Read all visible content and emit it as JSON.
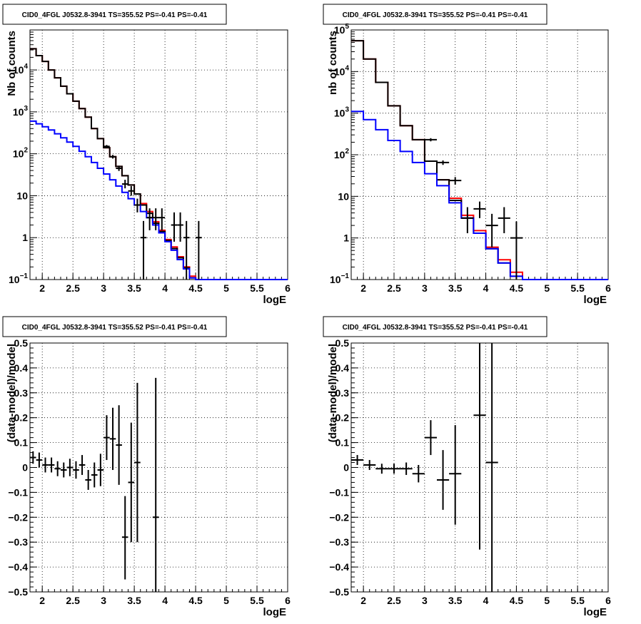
{
  "chart_data": [
    {
      "type": "histogram",
      "title": "CID0_4FGL J0532.8-3941 TS=355.52 PS=-0.41 PS=-0.41",
      "xlabel": "logE",
      "ylabel": "Nb of counts",
      "xlim": [
        1.8,
        6.0
      ],
      "ylim": [
        0.1,
        90000
      ],
      "ylog": true,
      "grid": true,
      "x_ticks": [
        "2",
        "2.5",
        "3",
        "3.5",
        "4",
        "4.5",
        "5",
        "5.5",
        "6"
      ],
      "y_ticks": [
        {
          "v": 0.1,
          "label": "10",
          "exp": "−1"
        },
        {
          "v": 1,
          "label": "1"
        },
        {
          "v": 10,
          "label": "10"
        },
        {
          "v": 100,
          "label": "10",
          "exp": "2"
        },
        {
          "v": 1000,
          "label": "10",
          "exp": "3"
        },
        {
          "v": 10000,
          "label": "10",
          "exp": "4"
        }
      ],
      "bin_edges": [
        1.8,
        1.9,
        2.0,
        2.1,
        2.2,
        2.3,
        2.4,
        2.5,
        2.6,
        2.7,
        2.8,
        2.9,
        3.0,
        3.1,
        3.2,
        3.3,
        3.4,
        3.5,
        3.6,
        3.7,
        3.8,
        3.9,
        4.0,
        4.1,
        4.2,
        4.3,
        4.4,
        4.5,
        4.6,
        4.7,
        4.8,
        4.9,
        5.0,
        5.1,
        5.2,
        5.3,
        5.4,
        5.5,
        5.6,
        5.7,
        5.8,
        5.9,
        6.0
      ],
      "series": [
        {
          "color": "#ff0000",
          "style": "step",
          "values": [
            32000,
            22000,
            16000,
            10000,
            6500,
            4100,
            2700,
            1800,
            1200,
            750,
            400,
            230,
            140,
            85,
            50,
            30,
            18,
            11,
            6.5,
            4.2,
            2.4,
            1.5,
            0.9,
            0.6,
            0.35,
            0.2,
            0.12,
            0.1,
            0.1,
            0.1,
            0.1,
            0.1,
            0.1,
            0.1,
            0.1,
            0.1,
            0.1,
            0.1,
            0.1,
            0.1,
            0.1,
            0.1
          ]
        },
        {
          "color": "#000000",
          "style": "step",
          "values": [
            32000,
            22000,
            16000,
            10000,
            6500,
            4100,
            2700,
            1800,
            1200,
            750,
            400,
            230,
            140,
            85,
            50,
            30,
            18,
            11,
            6.0,
            3.8,
            2.2,
            1.4,
            0.85,
            0.55,
            0.33,
            0.19,
            0.11,
            0.1,
            0.1,
            0.1,
            0.1,
            0.1,
            0.1,
            0.1,
            0.1,
            0.1,
            0.1,
            0.1,
            0.1,
            0.1,
            0.1,
            0.1
          ]
        },
        {
          "color": "#0000ff",
          "style": "step",
          "values": [
            600,
            520,
            440,
            370,
            300,
            240,
            190,
            150,
            115,
            85,
            62,
            45,
            33,
            24,
            17,
            12,
            8.5,
            6.0,
            4.2,
            3.0,
            2.0,
            1.3,
            0.8,
            0.5,
            0.3,
            0.18,
            0.11,
            0.1,
            0.1,
            0.1,
            0.1,
            0.1,
            0.1,
            0.1,
            0.1,
            0.1,
            0.1,
            0.1,
            0.1,
            0.1,
            0.1,
            0.1
          ]
        }
      ],
      "points": {
        "color": "#000000",
        "xerr": 0.05,
        "data": [
          {
            "x": 3.05,
            "y": 150,
            "lo": 140,
            "hi": 162
          },
          {
            "x": 3.15,
            "y": 85,
            "lo": 77,
            "hi": 94
          },
          {
            "x": 3.25,
            "y": 45,
            "lo": 39,
            "hi": 52
          },
          {
            "x": 3.35,
            "y": 19,
            "lo": 15,
            "hi": 24
          },
          {
            "x": 3.45,
            "y": 13,
            "lo": 10,
            "hi": 17
          },
          {
            "x": 3.55,
            "y": 6,
            "lo": 4,
            "hi": 8.5
          },
          {
            "x": 3.65,
            "y": 1,
            "lo": 0.1,
            "hi": 2.5
          },
          {
            "x": 3.75,
            "y": 3,
            "lo": 1.5,
            "hi": 5
          },
          {
            "x": 3.85,
            "y": 3,
            "lo": 1.5,
            "hi": 5
          },
          {
            "x": 3.95,
            "y": 3,
            "lo": 1.5,
            "hi": 5
          },
          {
            "x": 4.15,
            "y": 2,
            "lo": 0.8,
            "hi": 4
          },
          {
            "x": 4.25,
            "y": 2,
            "lo": 0.8,
            "hi": 4
          },
          {
            "x": 4.35,
            "y": 1,
            "lo": 0.1,
            "hi": 2.5
          },
          {
            "x": 4.55,
            "y": 1,
            "lo": 0.1,
            "hi": 2.5
          }
        ]
      }
    },
    {
      "type": "histogram",
      "title": "CID0_4FGL J0532.8-3941 TS=355.52 PS=-0.41 PS=-0.41",
      "xlabel": "logE",
      "ylabel": "nb of counts",
      "xlim": [
        1.8,
        6.0
      ],
      "ylim": [
        0.1,
        100000
      ],
      "ylog": true,
      "grid": true,
      "x_ticks": [
        "2",
        "2.5",
        "3",
        "3.5",
        "4",
        "4.5",
        "5",
        "5.5",
        "6"
      ],
      "y_ticks": [
        {
          "v": 0.1,
          "label": "10",
          "exp": "−1"
        },
        {
          "v": 1,
          "label": "1"
        },
        {
          "v": 10,
          "label": "10"
        },
        {
          "v": 100,
          "label": "10",
          "exp": "2"
        },
        {
          "v": 1000,
          "label": "10",
          "exp": "3"
        },
        {
          "v": 10000,
          "label": "10",
          "exp": "4"
        },
        {
          "v": 100000,
          "label": "10",
          "exp": "5"
        }
      ],
      "bin_edges": [
        1.8,
        2.0,
        2.2,
        2.4,
        2.6,
        2.8,
        3.0,
        3.2,
        3.4,
        3.6,
        3.8,
        4.0,
        4.2,
        4.4,
        4.6,
        4.8,
        5.0,
        5.2,
        5.4,
        5.6,
        5.8,
        6.0
      ],
      "series": [
        {
          "color": "#ff0000",
          "style": "step",
          "values": [
            55000,
            20000,
            5500,
            1500,
            500,
            230,
            70,
            25,
            9,
            3.5,
            1.5,
            0.6,
            0.3,
            0.15,
            0.1,
            0.1,
            0.1,
            0.1,
            0.1,
            0.1,
            0.1
          ]
        },
        {
          "color": "#000000",
          "style": "step",
          "values": [
            55000,
            20000,
            5500,
            1500,
            500,
            230,
            70,
            25,
            8,
            3,
            1.3,
            0.55,
            0.25,
            0.12,
            0.1,
            0.1,
            0.1,
            0.1,
            0.1,
            0.1,
            0.1
          ]
        },
        {
          "color": "#0000ff",
          "style": "step",
          "values": [
            1100,
            700,
            400,
            220,
            120,
            65,
            35,
            18,
            7,
            3,
            1.3,
            0.55,
            0.25,
            0.12,
            0.1,
            0.1,
            0.1,
            0.1,
            0.1,
            0.1,
            0.1
          ]
        }
      ],
      "points": {
        "color": "#000000",
        "xerr": 0.1,
        "data": [
          {
            "x": 3.1,
            "y": 230,
            "lo": 210,
            "hi": 250
          },
          {
            "x": 3.3,
            "y": 65,
            "lo": 57,
            "hi": 73
          },
          {
            "x": 3.5,
            "y": 24,
            "lo": 19,
            "hi": 29
          },
          {
            "x": 3.7,
            "y": 3,
            "lo": 1.3,
            "hi": 5.5
          },
          {
            "x": 3.9,
            "y": 5,
            "lo": 3,
            "hi": 7.5
          },
          {
            "x": 4.1,
            "y": 2,
            "lo": 0.6,
            "hi": 3.8
          },
          {
            "x": 4.3,
            "y": 3,
            "lo": 1.3,
            "hi": 5.5
          },
          {
            "x": 4.5,
            "y": 1,
            "lo": 0.1,
            "hi": 2.5
          }
        ]
      }
    },
    {
      "type": "errorbar",
      "title": "CID0_4FGL J0532.8-3941 TS=355.52 PS=-0.41 PS=-0.41",
      "xlabel": "logE",
      "ylabel": "(data-model)/model",
      "xlim": [
        1.8,
        6.0
      ],
      "ylim": [
        -0.5,
        0.5
      ],
      "ylog": false,
      "grid": true,
      "x_ticks": [
        "2",
        "2.5",
        "3",
        "3.5",
        "4",
        "4.5",
        "5",
        "5.5",
        "6"
      ],
      "y_ticks": [
        {
          "v": -0.5,
          "label": "−0.5"
        },
        {
          "v": -0.4,
          "label": "−0.4"
        },
        {
          "v": -0.3,
          "label": "−0.3"
        },
        {
          "v": -0.2,
          "label": "−0.2"
        },
        {
          "v": -0.1,
          "label": "−0.1"
        },
        {
          "v": 0,
          "label": "0"
        },
        {
          "v": 0.1,
          "label": "0.1"
        },
        {
          "v": 0.2,
          "label": "0.2"
        },
        {
          "v": 0.3,
          "label": "0.3"
        },
        {
          "v": 0.4,
          "label": "0.4"
        },
        {
          "v": 0.5,
          "label": "0.5"
        }
      ],
      "points": {
        "color": "#000000",
        "xerr": 0.05,
        "data": [
          {
            "x": 1.85,
            "y": 0.04,
            "lo": 0.015,
            "hi": 0.065
          },
          {
            "x": 1.95,
            "y": 0.03,
            "lo": 0.0,
            "hi": 0.06
          },
          {
            "x": 2.05,
            "y": 0.01,
            "lo": -0.02,
            "hi": 0.04
          },
          {
            "x": 2.15,
            "y": 0.01,
            "lo": -0.02,
            "hi": 0.04
          },
          {
            "x": 2.25,
            "y": -0.005,
            "lo": -0.035,
            "hi": 0.025
          },
          {
            "x": 2.35,
            "y": -0.01,
            "lo": -0.04,
            "hi": 0.02
          },
          {
            "x": 2.45,
            "y": 0.0,
            "lo": -0.035,
            "hi": 0.035
          },
          {
            "x": 2.55,
            "y": -0.01,
            "lo": -0.045,
            "hi": 0.025
          },
          {
            "x": 2.65,
            "y": 0.01,
            "lo": -0.03,
            "hi": 0.05
          },
          {
            "x": 2.75,
            "y": -0.05,
            "lo": -0.09,
            "hi": -0.01
          },
          {
            "x": 2.85,
            "y": -0.03,
            "lo": -0.08,
            "hi": 0.02
          },
          {
            "x": 2.95,
            "y": -0.01,
            "lo": -0.075,
            "hi": 0.055
          },
          {
            "x": 3.05,
            "y": 0.12,
            "lo": 0.03,
            "hi": 0.21
          },
          {
            "x": 3.15,
            "y": 0.115,
            "lo": -0.01,
            "hi": 0.24
          },
          {
            "x": 3.25,
            "y": 0.09,
            "lo": -0.07,
            "hi": 0.25
          },
          {
            "x": 3.35,
            "y": -0.28,
            "lo": -0.45,
            "hi": -0.115
          },
          {
            "x": 3.45,
            "y": -0.06,
            "lo": -0.3,
            "hi": 0.18
          },
          {
            "x": 3.55,
            "y": 0.02,
            "lo": -0.3,
            "hi": 0.34
          },
          {
            "x": 3.85,
            "y": -0.2,
            "lo": -0.6,
            "hi": 0.36
          }
        ]
      }
    },
    {
      "type": "errorbar",
      "title": "CID0_4FGL J0532.8-3941 TS=355.52 PS=-0.41 PS=-0.41",
      "xlabel": "logE",
      "ylabel": "(data-model)/model",
      "xlim": [
        1.8,
        6.0
      ],
      "ylim": [
        -0.5,
        0.5
      ],
      "ylog": false,
      "grid": true,
      "x_ticks": [
        "2",
        "2.5",
        "3",
        "3.5",
        "4",
        "4.5",
        "5",
        "5.5",
        "6"
      ],
      "y_ticks": [
        {
          "v": -0.5,
          "label": "−0.5"
        },
        {
          "v": -0.4,
          "label": "−0.4"
        },
        {
          "v": -0.3,
          "label": "−0.3"
        },
        {
          "v": -0.2,
          "label": "−0.2"
        },
        {
          "v": -0.1,
          "label": "−0.1"
        },
        {
          "v": 0,
          "label": "0"
        },
        {
          "v": 0.1,
          "label": "0.1"
        },
        {
          "v": 0.2,
          "label": "0.2"
        },
        {
          "v": 0.3,
          "label": "0.3"
        },
        {
          "v": 0.4,
          "label": "0.4"
        },
        {
          "v": 0.5,
          "label": "0.5"
        }
      ],
      "points": {
        "color": "#000000",
        "xerr": 0.1,
        "data": [
          {
            "x": 1.9,
            "y": 0.03,
            "lo": 0.01,
            "hi": 0.05
          },
          {
            "x": 2.1,
            "y": 0.01,
            "lo": -0.01,
            "hi": 0.03
          },
          {
            "x": 2.3,
            "y": -0.005,
            "lo": -0.025,
            "hi": 0.015
          },
          {
            "x": 2.5,
            "y": -0.005,
            "lo": -0.025,
            "hi": 0.015
          },
          {
            "x": 2.7,
            "y": -0.005,
            "lo": -0.03,
            "hi": 0.02
          },
          {
            "x": 2.9,
            "y": -0.025,
            "lo": -0.06,
            "hi": 0.01
          },
          {
            "x": 3.1,
            "y": 0.12,
            "lo": 0.05,
            "hi": 0.19
          },
          {
            "x": 3.3,
            "y": -0.05,
            "lo": -0.17,
            "hi": 0.07
          },
          {
            "x": 3.5,
            "y": -0.025,
            "lo": -0.23,
            "hi": 0.17
          },
          {
            "x": 3.9,
            "y": 0.21,
            "lo": -0.33,
            "hi": 0.75
          },
          {
            "x": 4.1,
            "y": 0.02,
            "lo": -0.6,
            "hi": 0.64
          }
        ]
      }
    }
  ]
}
